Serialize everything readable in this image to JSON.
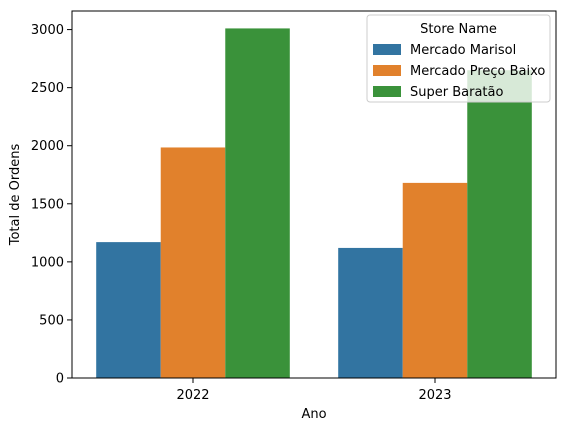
{
  "chart_data": {
    "type": "bar",
    "title": "",
    "xlabel": "Ano",
    "ylabel": "Total de Ordens",
    "categories": [
      "2022",
      "2023"
    ],
    "series": [
      {
        "name": "Mercado Marisol",
        "color": "#3274a1",
        "values": [
          1170,
          1120
        ]
      },
      {
        "name": "Mercado Preço Baixo",
        "color": "#e1812c",
        "values": [
          1985,
          1680
        ]
      },
      {
        "name": "Super Baratão",
        "color": "#3a923a",
        "values": [
          3010,
          2650
        ]
      }
    ],
    "ylim": [
      0,
      3160
    ],
    "yticks": [
      0,
      500,
      1000,
      1500,
      2000,
      2500,
      3000
    ],
    "grid": false,
    "legend": {
      "title": "Store Name",
      "placement": "top-right"
    }
  }
}
